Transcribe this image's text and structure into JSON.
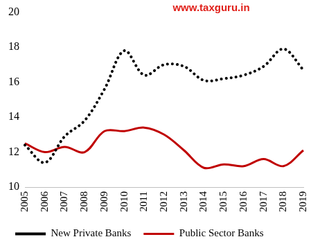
{
  "chart_data": {
    "type": "line",
    "annotations": [
      "www.taxguru.in"
    ],
    "categories": [
      "2005",
      "2006",
      "2007",
      "2008",
      "2009",
      "2010",
      "2011",
      "2012",
      "2013",
      "2014",
      "2015",
      "2016",
      "2017",
      "2018",
      "2019"
    ],
    "series": [
      {
        "name": "New Private Banks",
        "color": "#000000",
        "line_style": "dotted",
        "values": [
          12.4,
          11.4,
          12.9,
          13.8,
          15.6,
          17.8,
          16.4,
          17.0,
          16.9,
          16.1,
          16.2,
          16.4,
          16.9,
          17.9,
          16.7
        ]
      },
      {
        "name": "Public Sector Banks",
        "color": "#c00000",
        "line_style": "solid",
        "values": [
          12.5,
          12.0,
          12.3,
          12.0,
          13.2,
          13.2,
          13.4,
          13.0,
          12.1,
          11.1,
          11.3,
          11.2,
          11.6,
          11.2,
          12.1
        ]
      }
    ],
    "ylim": [
      10,
      20
    ],
    "yticks": [
      10,
      12,
      14,
      16,
      18,
      20
    ],
    "grid": false,
    "legend": "bottom"
  }
}
